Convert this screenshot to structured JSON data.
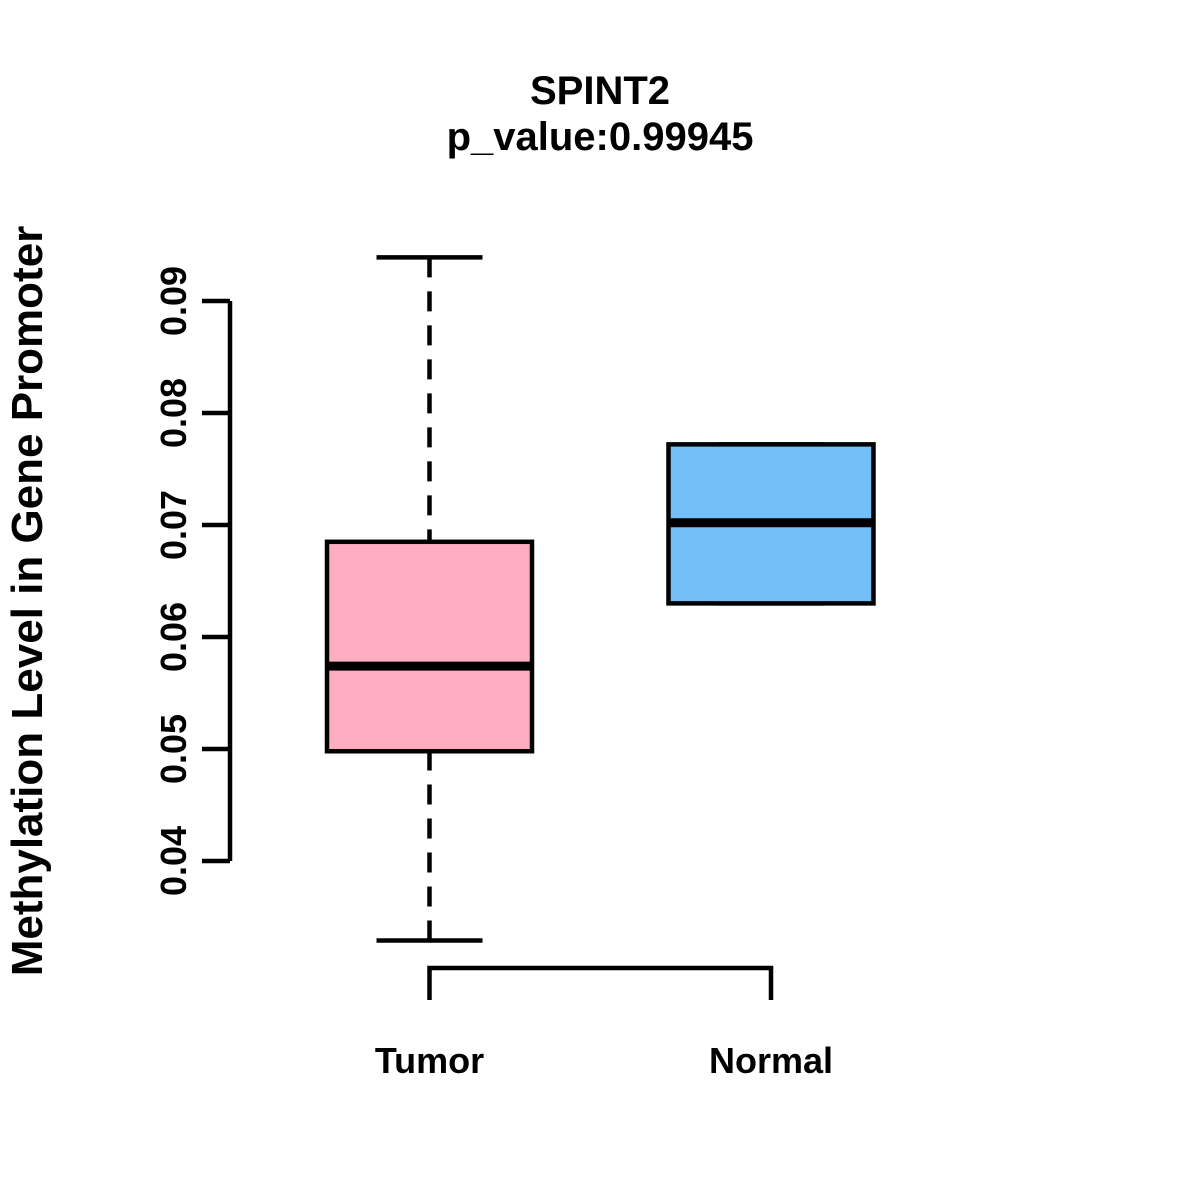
{
  "chart_data": {
    "type": "boxplot",
    "title": "SPINT2",
    "subtitle": "p_value:0.99945",
    "ylabel": "Methylation Level in Gene Promoter",
    "xlabel": "",
    "categories": [
      "Tumor",
      "Normal"
    ],
    "yticks": [
      0.04,
      0.05,
      0.06,
      0.07,
      0.08,
      0.09
    ],
    "ytick_labels": [
      "0.04",
      "0.05",
      "0.06",
      "0.07",
      "0.08",
      "0.09"
    ],
    "ylim": [
      0.031,
      0.096
    ],
    "grid": false,
    "legend": "none",
    "groups": [
      {
        "label": "Tumor",
        "fill_color": "#FFAEC1",
        "whisker_low": 0.0329,
        "q1": 0.0498,
        "median": 0.0574,
        "q3": 0.0685,
        "whisker_high": 0.0939,
        "whisker_line_style": "dashed"
      },
      {
        "label": "Normal",
        "fill_color": "#73BEF7",
        "whisker_low": 0.063,
        "q1": 0.063,
        "median": 0.0702,
        "q3": 0.0772,
        "whisker_high": 0.0772,
        "whisker_line_style": "dashed"
      }
    ],
    "colors": {
      "box_border": "#000000",
      "median_line": "#000000",
      "axis": "#000000",
      "background": "#FFFFFF"
    }
  }
}
